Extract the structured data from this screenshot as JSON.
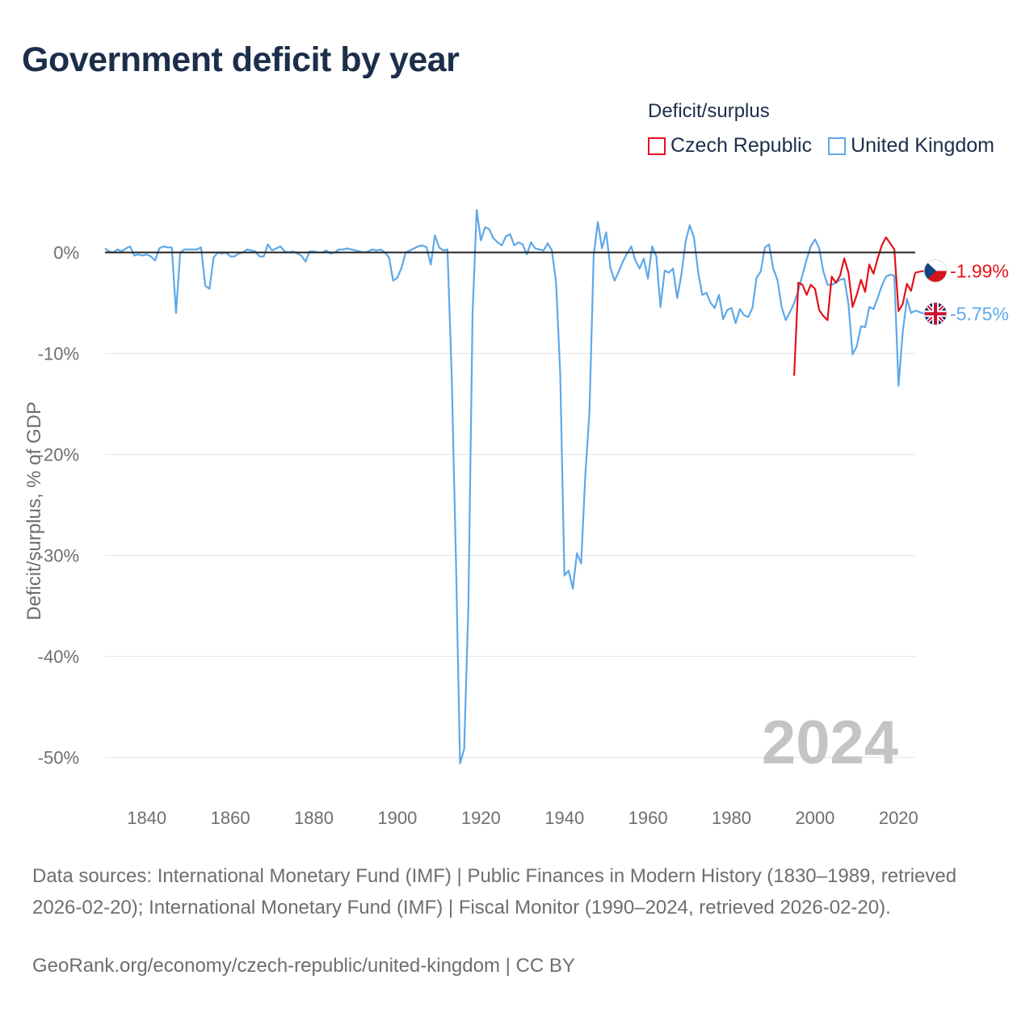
{
  "title": "Government deficit by year",
  "legend_title": "Deficit/surplus",
  "footer_text": "Data sources: International Monetary Fund (IMF) | Public Finances in Modern History (1830–1989, retrieved 2026-02-20); International Monetary Fund (IMF) | Fiscal Monitor (1990–2024, retrieved 2026-02-20).",
  "credit": "GeoRank.org/economy/czech-republic/united-kingdom | CC BY",
  "year_watermark": "2024",
  "colors": {
    "czech": "#e3121a",
    "uk": "#5ea8e8",
    "zero_line": "#222222",
    "grid": "#e6e6e6"
  },
  "chart_data": {
    "type": "line",
    "ylabel": "Deficit/surplus, % of GDP",
    "xlim": [
      1830,
      2024
    ],
    "ylim": [
      -53,
      5
    ],
    "x_ticks": [
      1840,
      1860,
      1880,
      1900,
      1920,
      1940,
      1960,
      1980,
      2000,
      2020
    ],
    "y_ticks": [
      0,
      -10,
      -20,
      -30,
      -40,
      -50
    ],
    "y_tick_labels": [
      "0%",
      "-10%",
      "-20%",
      "-30%",
      "-40%",
      "-50%"
    ],
    "series": [
      {
        "name": "Czech Republic",
        "key": "czech",
        "end_label": "-1.99%",
        "points": [
          [
            1995,
            -12.2
          ],
          [
            1996,
            -3.0
          ],
          [
            1997,
            -3.2
          ],
          [
            1998,
            -4.2
          ],
          [
            1999,
            -3.2
          ],
          [
            2000,
            -3.6
          ],
          [
            2001,
            -5.7
          ],
          [
            2002,
            -6.3
          ],
          [
            2003,
            -6.7
          ],
          [
            2004,
            -2.4
          ],
          [
            2005,
            -3.0
          ],
          [
            2006,
            -2.3
          ],
          [
            2007,
            -0.6
          ],
          [
            2008,
            -2.0
          ],
          [
            2009,
            -5.4
          ],
          [
            2010,
            -4.2
          ],
          [
            2011,
            -2.7
          ],
          [
            2012,
            -3.9
          ],
          [
            2013,
            -1.2
          ],
          [
            2014,
            -2.1
          ],
          [
            2015,
            -0.6
          ],
          [
            2016,
            0.7
          ],
          [
            2017,
            1.5
          ],
          [
            2018,
            0.9
          ],
          [
            2019,
            0.3
          ],
          [
            2020,
            -5.8
          ],
          [
            2021,
            -5.1
          ],
          [
            2022,
            -3.1
          ],
          [
            2023,
            -3.8
          ],
          [
            2024,
            -1.99
          ]
        ]
      },
      {
        "name": "United Kingdom",
        "key": "uk",
        "end_label": "-5.75%",
        "points": [
          [
            1830,
            0.4
          ],
          [
            1831,
            0.1
          ],
          [
            1832,
            0.0
          ],
          [
            1833,
            0.3
          ],
          [
            1834,
            0.1
          ],
          [
            1835,
            0.4
          ],
          [
            1836,
            0.6
          ],
          [
            1837,
            -0.3
          ],
          [
            1838,
            -0.2
          ],
          [
            1839,
            -0.3
          ],
          [
            1840,
            -0.2
          ],
          [
            1841,
            -0.4
          ],
          [
            1842,
            -0.8
          ],
          [
            1843,
            0.4
          ],
          [
            1844,
            0.6
          ],
          [
            1845,
            0.5
          ],
          [
            1846,
            0.5
          ],
          [
            1847,
            -6.0
          ],
          [
            1848,
            0.0
          ],
          [
            1849,
            0.3
          ],
          [
            1850,
            0.3
          ],
          [
            1851,
            0.3
          ],
          [
            1852,
            0.3
          ],
          [
            1853,
            0.5
          ],
          [
            1854,
            -3.3
          ],
          [
            1855,
            -3.6
          ],
          [
            1856,
            -0.5
          ],
          [
            1857,
            0.0
          ],
          [
            1858,
            -0.1
          ],
          [
            1859,
            0.0
          ],
          [
            1860,
            -0.4
          ],
          [
            1861,
            -0.4
          ],
          [
            1862,
            -0.1
          ],
          [
            1863,
            0.0
          ],
          [
            1864,
            0.3
          ],
          [
            1865,
            0.2
          ],
          [
            1866,
            0.1
          ],
          [
            1867,
            -0.4
          ],
          [
            1868,
            -0.4
          ],
          [
            1869,
            0.8
          ],
          [
            1870,
            0.2
          ],
          [
            1871,
            0.4
          ],
          [
            1872,
            0.6
          ],
          [
            1873,
            0.1
          ],
          [
            1874,
            0.0
          ],
          [
            1875,
            0.1
          ],
          [
            1876,
            -0.1
          ],
          [
            1877,
            -0.3
          ],
          [
            1878,
            -0.9
          ],
          [
            1879,
            0.1
          ],
          [
            1880,
            0.1
          ],
          [
            1881,
            0.0
          ],
          [
            1882,
            0.0
          ],
          [
            1883,
            0.2
          ],
          [
            1884,
            -0.1
          ],
          [
            1885,
            0.0
          ],
          [
            1886,
            0.3
          ],
          [
            1887,
            0.3
          ],
          [
            1888,
            0.4
          ],
          [
            1889,
            0.3
          ],
          [
            1890,
            0.2
          ],
          [
            1891,
            0.1
          ],
          [
            1892,
            0.0
          ],
          [
            1893,
            0.1
          ],
          [
            1894,
            0.3
          ],
          [
            1895,
            0.2
          ],
          [
            1896,
            0.3
          ],
          [
            1897,
            0.0
          ],
          [
            1898,
            -0.5
          ],
          [
            1899,
            -2.8
          ],
          [
            1900,
            -2.5
          ],
          [
            1901,
            -1.5
          ],
          [
            1902,
            0.0
          ],
          [
            1903,
            0.2
          ],
          [
            1904,
            0.4
          ],
          [
            1905,
            0.6
          ],
          [
            1906,
            0.7
          ],
          [
            1907,
            0.5
          ],
          [
            1908,
            -1.2
          ],
          [
            1909,
            1.7
          ],
          [
            1910,
            0.5
          ],
          [
            1911,
            0.2
          ],
          [
            1912,
            0.3
          ],
          [
            1913,
            -12.0
          ],
          [
            1914,
            -30.0
          ],
          [
            1915,
            -50.6
          ],
          [
            1916,
            -49.2
          ],
          [
            1917,
            -35.0
          ],
          [
            1918,
            -6.0
          ],
          [
            1919,
            4.2
          ],
          [
            1920,
            1.2
          ],
          [
            1921,
            2.5
          ],
          [
            1922,
            2.3
          ],
          [
            1923,
            1.4
          ],
          [
            1924,
            1.0
          ],
          [
            1925,
            0.7
          ],
          [
            1926,
            1.6
          ],
          [
            1927,
            1.8
          ],
          [
            1928,
            0.7
          ],
          [
            1929,
            1.0
          ],
          [
            1930,
            0.8
          ],
          [
            1931,
            -0.2
          ],
          [
            1932,
            1.0
          ],
          [
            1933,
            0.4
          ],
          [
            1934,
            0.3
          ],
          [
            1935,
            0.2
          ],
          [
            1936,
            0.9
          ],
          [
            1937,
            0.2
          ],
          [
            1938,
            -3.0
          ],
          [
            1939,
            -12.0
          ],
          [
            1940,
            -32.0
          ],
          [
            1941,
            -31.5
          ],
          [
            1942,
            -33.3
          ],
          [
            1943,
            -29.8
          ],
          [
            1944,
            -30.8
          ],
          [
            1945,
            -22.0
          ],
          [
            1946,
            -15.8
          ],
          [
            1947,
            -0.3
          ],
          [
            1948,
            3.0
          ],
          [
            1949,
            0.4
          ],
          [
            1950,
            2.0
          ],
          [
            1951,
            -1.5
          ],
          [
            1952,
            -2.8
          ],
          [
            1953,
            -1.9
          ],
          [
            1954,
            -0.9
          ],
          [
            1955,
            -0.1
          ],
          [
            1956,
            0.6
          ],
          [
            1957,
            -0.8
          ],
          [
            1958,
            -1.6
          ],
          [
            1959,
            -0.6
          ],
          [
            1960,
            -2.6
          ],
          [
            1961,
            0.6
          ],
          [
            1962,
            -0.4
          ],
          [
            1963,
            -5.4
          ],
          [
            1964,
            -1.8
          ],
          [
            1965,
            -2.0
          ],
          [
            1966,
            -1.6
          ],
          [
            1967,
            -4.5
          ],
          [
            1968,
            -2.2
          ],
          [
            1969,
            1.0
          ],
          [
            1970,
            2.7
          ],
          [
            1971,
            1.5
          ],
          [
            1972,
            -1.9
          ],
          [
            1973,
            -4.2
          ],
          [
            1974,
            -4.0
          ],
          [
            1975,
            -5.0
          ],
          [
            1976,
            -5.5
          ],
          [
            1977,
            -4.2
          ],
          [
            1978,
            -6.6
          ],
          [
            1979,
            -5.7
          ],
          [
            1980,
            -5.5
          ],
          [
            1981,
            -7.0
          ],
          [
            1982,
            -5.6
          ],
          [
            1983,
            -6.2
          ],
          [
            1984,
            -6.4
          ],
          [
            1985,
            -5.5
          ],
          [
            1986,
            -2.5
          ],
          [
            1987,
            -1.9
          ],
          [
            1988,
            0.5
          ],
          [
            1989,
            0.8
          ],
          [
            1990,
            -1.6
          ],
          [
            1991,
            -2.7
          ],
          [
            1992,
            -5.4
          ],
          [
            1993,
            -6.7
          ],
          [
            1994,
            -5.9
          ],
          [
            1995,
            -5.0
          ],
          [
            1996,
            -3.8
          ],
          [
            1997,
            -2.2
          ],
          [
            1998,
            -0.7
          ],
          [
            1999,
            0.6
          ],
          [
            2000,
            1.3
          ],
          [
            2001,
            0.4
          ],
          [
            2002,
            -1.9
          ],
          [
            2003,
            -3.2
          ],
          [
            2004,
            -3.2
          ],
          [
            2005,
            -3.0
          ],
          [
            2006,
            -2.7
          ],
          [
            2007,
            -2.6
          ],
          [
            2008,
            -5.1
          ],
          [
            2009,
            -10.1
          ],
          [
            2010,
            -9.3
          ],
          [
            2011,
            -7.3
          ],
          [
            2012,
            -7.4
          ],
          [
            2013,
            -5.4
          ],
          [
            2014,
            -5.6
          ],
          [
            2015,
            -4.5
          ],
          [
            2016,
            -3.3
          ],
          [
            2017,
            -2.4
          ],
          [
            2018,
            -2.2
          ],
          [
            2019,
            -2.3
          ],
          [
            2020,
            -13.2
          ],
          [
            2021,
            -7.9
          ],
          [
            2022,
            -4.6
          ],
          [
            2023,
            -6.0
          ],
          [
            2024,
            -5.75
          ]
        ]
      }
    ]
  }
}
